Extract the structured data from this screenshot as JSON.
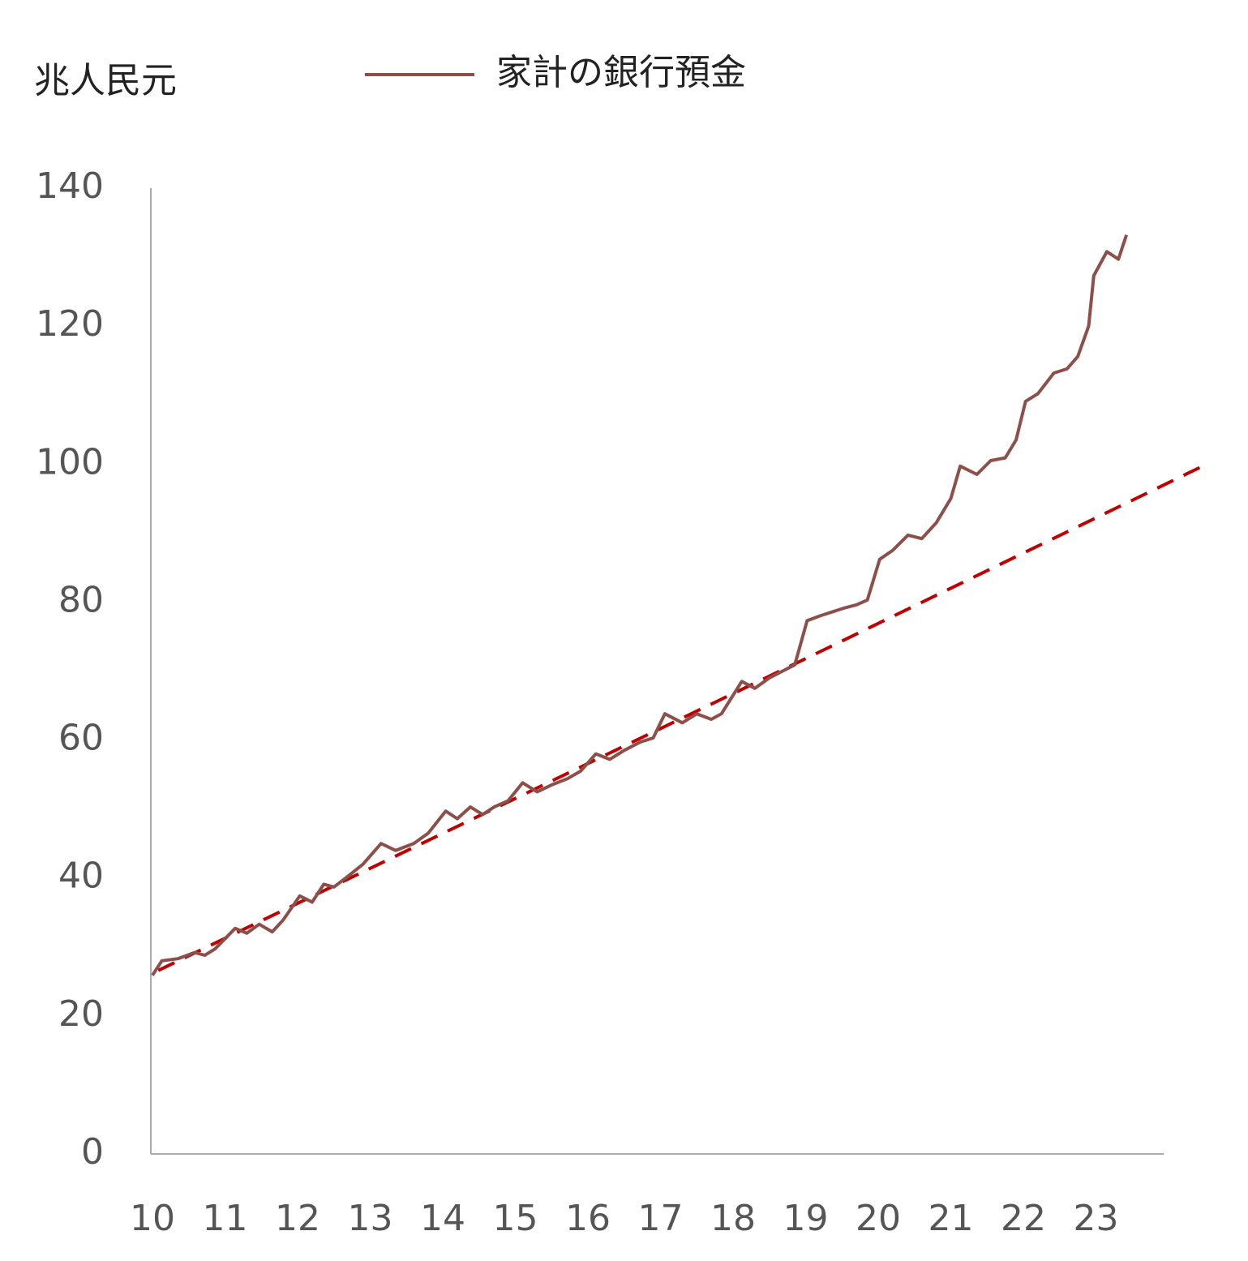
{
  "chart_data": {
    "type": "line",
    "ylabel": "兆人民元",
    "xlim": [
      10,
      24
    ],
    "xticks": [
      10,
      11,
      12,
      13,
      14,
      15,
      16,
      17,
      18,
      19,
      20,
      21,
      22,
      23
    ],
    "ylim": [
      0,
      140
    ],
    "yticks": [
      0,
      20,
      40,
      60,
      80,
      100,
      120,
      140
    ],
    "legend": "top",
    "series": [
      {
        "name": "家計の銀行預金",
        "color": "#8c4f4a",
        "x": [
          10.0,
          10.13,
          10.35,
          10.58,
          10.72,
          10.86,
          11.14,
          11.3,
          11.47,
          11.65,
          11.8,
          12.03,
          12.2,
          12.36,
          12.5,
          12.7,
          12.9,
          13.15,
          13.35,
          13.6,
          13.8,
          14.04,
          14.2,
          14.38,
          14.55,
          14.71,
          14.9,
          15.1,
          15.3,
          15.5,
          15.72,
          15.9,
          16.11,
          16.3,
          16.5,
          16.72,
          16.9,
          17.06,
          17.3,
          17.5,
          17.7,
          17.84,
          18.12,
          18.3,
          18.5,
          18.85,
          19.02,
          19.2,
          19.52,
          19.7,
          19.85,
          20.02,
          20.2,
          20.41,
          20.6,
          20.8,
          21.0,
          21.13,
          21.36,
          21.55,
          21.75,
          21.9,
          22.03,
          22.2,
          22.42,
          22.6,
          22.75,
          22.9,
          22.97,
          23.15,
          23.31,
          23.42
        ],
        "values": [
          25.9,
          28,
          28.3,
          29.2,
          28.8,
          29.7,
          32.7,
          32,
          33.3,
          32.2,
          33.9,
          37.4,
          36.5,
          39.1,
          38.7,
          40.3,
          42,
          45,
          44,
          45,
          46.5,
          49.7,
          48.6,
          50.3,
          49.2,
          50.3,
          51.2,
          53.8,
          52.5,
          53.5,
          54.4,
          55.5,
          58,
          57.2,
          58.5,
          59.7,
          60.3,
          63.8,
          62.5,
          63.8,
          63,
          63.8,
          68.5,
          67.5,
          69,
          70.9,
          77.3,
          78,
          79.1,
          79.6,
          80.3,
          86.2,
          87.5,
          89.7,
          89.2,
          91.5,
          95,
          99.7,
          98.5,
          100.5,
          100.9,
          103.5,
          109.1,
          110.2,
          113.2,
          113.8,
          115.6,
          120,
          127.3,
          130.8,
          129.7,
          133.2
        ]
      }
    ],
    "trend": {
      "color": "#c00000",
      "x": [
        10.08,
        19,
        24.51
      ],
      "values": [
        26.6,
        71.8,
        99.9
      ]
    }
  }
}
